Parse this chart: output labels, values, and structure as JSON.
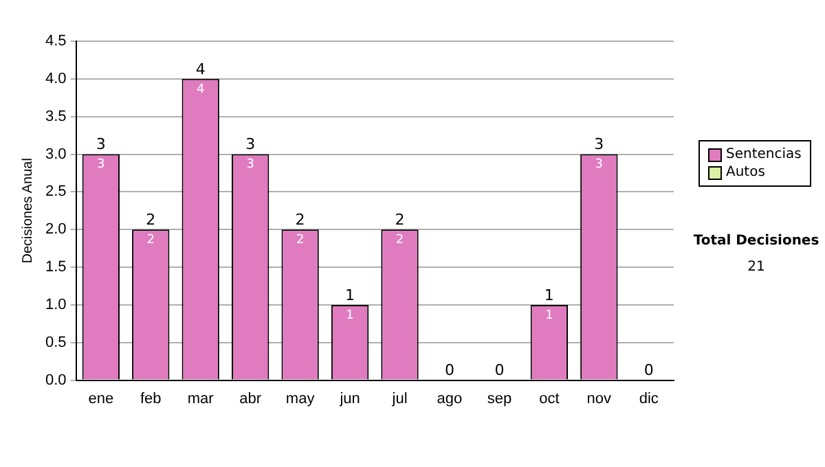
{
  "chart_data": {
    "type": "bar",
    "ylabel": "Decisiones Anual",
    "categories": [
      "ene",
      "feb",
      "mar",
      "abr",
      "may",
      "jun",
      "jul",
      "ago",
      "sep",
      "oct",
      "nov",
      "dic"
    ],
    "series": [
      {
        "name": "Sentencias",
        "color": "#e07bbf",
        "values": [
          3,
          2,
          4,
          3,
          2,
          1,
          2,
          0,
          0,
          1,
          3,
          0
        ],
        "value_labels": [
          "3",
          "2",
          "4",
          "3",
          "2",
          "1",
          "2",
          null,
          null,
          "1",
          "3",
          null
        ]
      },
      {
        "name": "Autos",
        "color": "#d9f0a3",
        "values": [
          0,
          0,
          0,
          0,
          0,
          0,
          0,
          0,
          0,
          0,
          0,
          0
        ]
      }
    ],
    "stacked": true,
    "totals": [
      "3",
      "2",
      "4",
      "3",
      "2",
      "1",
      "2",
      "0",
      "0",
      "1",
      "3",
      "0"
    ],
    "ylim": [
      0,
      4.5
    ],
    "yticks": [
      {
        "value": 0,
        "label": "0.0"
      },
      {
        "value": 0.5,
        "label": "0.5"
      },
      {
        "value": 1,
        "label": "1.0"
      },
      {
        "value": 1.5,
        "label": "1.5"
      },
      {
        "value": 2,
        "label": "2.0"
      },
      {
        "value": 2.5,
        "label": "2.5"
      },
      {
        "value": 3,
        "label": "3.0"
      },
      {
        "value": 3.5,
        "label": "3.5"
      },
      {
        "value": 4,
        "label": "4.0"
      },
      {
        "value": 4.5,
        "label": "4.5"
      }
    ],
    "grid": "y",
    "legend": "right",
    "annotations": [
      "Total Decisiones",
      "21"
    ]
  }
}
